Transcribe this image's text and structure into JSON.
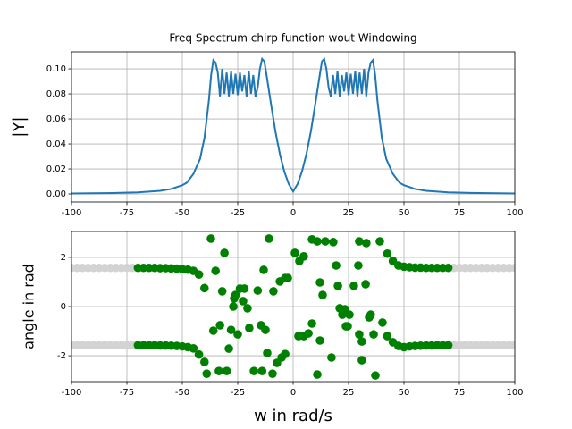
{
  "chart_data": [
    {
      "type": "line",
      "title": "Freq Spectrum chirp function wout Windowing",
      "ylabel": "|Y|",
      "x": [
        -100,
        -80,
        -70,
        -60,
        -55,
        -50,
        -48,
        -45,
        -42,
        -40,
        -38,
        -37,
        -36,
        -35,
        -34,
        -33,
        -32,
        -31,
        -30,
        -29,
        -28,
        -27,
        -26,
        -25,
        -24,
        -23,
        -22,
        -21,
        -20,
        -19,
        -18,
        -17,
        -16,
        -15,
        -14,
        -13,
        -12,
        -10,
        -8,
        -6,
        -4,
        -2,
        0,
        2,
        4,
        6,
        8,
        10,
        12,
        13,
        14,
        15,
        16,
        17,
        18,
        19,
        20,
        21,
        22,
        23,
        24,
        25,
        26,
        27,
        28,
        29,
        30,
        31,
        32,
        33,
        34,
        35,
        36,
        37,
        38,
        40,
        42,
        45,
        48,
        50,
        55,
        60,
        70,
        80,
        100
      ],
      "series": [
        {
          "color": "#1f77b4",
          "values": [
            0.0004,
            0.0008,
            0.0013,
            0.0025,
            0.004,
            0.007,
            0.009,
            0.016,
            0.028,
            0.045,
            0.075,
            0.095,
            0.107,
            0.105,
            0.097,
            0.078,
            0.1,
            0.08,
            0.097,
            0.078,
            0.098,
            0.08,
            0.096,
            0.079,
            0.097,
            0.082,
            0.095,
            0.078,
            0.098,
            0.08,
            0.095,
            0.078,
            0.085,
            0.1,
            0.108,
            0.106,
            0.095,
            0.072,
            0.05,
            0.032,
            0.018,
            0.008,
            0.002,
            0.008,
            0.018,
            0.032,
            0.05,
            0.072,
            0.095,
            0.106,
            0.108,
            0.1,
            0.085,
            0.078,
            0.095,
            0.08,
            0.098,
            0.078,
            0.095,
            0.082,
            0.097,
            0.079,
            0.096,
            0.08,
            0.098,
            0.078,
            0.097,
            0.08,
            0.1,
            0.078,
            0.097,
            0.105,
            0.107,
            0.095,
            0.075,
            0.045,
            0.028,
            0.016,
            0.009,
            0.007,
            0.004,
            0.0025,
            0.0013,
            0.0008,
            0.0004
          ]
        }
      ],
      "xlim": [
        -100,
        100
      ],
      "ylim": [
        -0.0064,
        0.1136
      ],
      "xticks": [
        -100,
        -75,
        -50,
        -25,
        0,
        25,
        50,
        75,
        100
      ],
      "yticks": [
        {
          "value": 0,
          "label": "0.00"
        },
        {
          "value": 0.02,
          "label": "0.02"
        },
        {
          "value": 0.04,
          "label": "0.04"
        },
        {
          "value": 0.06,
          "label": "0.06"
        },
        {
          "value": 0.08,
          "label": "0.08"
        },
        {
          "value": 0.1,
          "label": "0.10"
        }
      ],
      "grid": true
    },
    {
      "type": "scatter",
      "xlabel": "w in rad/s",
      "ylabel": "angle in rad",
      "series": [
        {
          "color": "lightgray",
          "x": [
            -100,
            -97.5,
            -95,
            -92.5,
            -90,
            -87.5,
            -85,
            -82.5,
            -80,
            -77.5,
            -75,
            -72.5,
            -100,
            -97.5,
            -95,
            -92.5,
            -90,
            -87.5,
            -85,
            -82.5,
            -80,
            -77.5,
            -75,
            -72.5,
            72.5,
            75,
            77.5,
            80,
            82.5,
            85,
            87.5,
            90,
            92.5,
            95,
            97.5,
            100,
            72.5,
            75,
            77.5,
            80,
            82.5,
            85,
            87.5,
            90,
            92.5,
            95,
            97.5,
            100
          ],
          "values": [
            1.57,
            1.57,
            1.57,
            1.57,
            1.57,
            1.57,
            1.57,
            1.57,
            1.57,
            1.57,
            1.57,
            1.57,
            -1.57,
            -1.57,
            -1.57,
            -1.57,
            -1.57,
            -1.57,
            -1.57,
            -1.57,
            -1.57,
            -1.57,
            -1.57,
            -1.57,
            1.57,
            1.57,
            1.57,
            1.57,
            1.57,
            1.57,
            1.57,
            1.57,
            1.57,
            1.57,
            1.57,
            1.57,
            -1.57,
            -1.57,
            -1.57,
            -1.57,
            -1.57,
            -1.57,
            -1.57,
            -1.57,
            -1.57,
            -1.57,
            -1.57,
            -1.57
          ]
        },
        {
          "color": "green",
          "x": [
            -70,
            -67.5,
            -65,
            -62.5,
            -60,
            -57.5,
            -55,
            -52.5,
            -50,
            -47.5,
            -45,
            -42.5,
            -40,
            -70,
            -67.5,
            -65,
            -62.5,
            -60,
            -57.5,
            -55,
            -52.5,
            -50,
            -47.5,
            -45,
            -42.5,
            -40,
            42.5,
            45,
            47.5,
            50,
            52.5,
            55,
            57.5,
            60,
            62.5,
            65,
            67.5,
            70,
            42.5,
            45,
            47.5,
            50,
            52.5,
            55,
            57.5,
            60,
            62.5,
            65,
            67.5,
            70,
            -37.1,
            -31,
            -35,
            -36,
            -33,
            -39,
            -33.5,
            -30,
            -29,
            -32,
            -26,
            -24,
            -22,
            -26.6,
            -22.6,
            -27,
            -20.6,
            -19.8,
            -28,
            -25,
            -14.5,
            -12.5,
            -11.7,
            -17.7,
            -14,
            -10.9,
            -13.3,
            -16,
            -8.9,
            -6,
            -3.6,
            -2.4,
            -5.2,
            -3.6,
            -7.3,
            -9.3,
            0.8,
            2.8,
            4.8,
            2.4,
            4.8,
            6.9,
            8.5,
            8.5,
            10.9,
            12.1,
            13.3,
            12.1,
            10.9,
            14.5,
            18.1,
            19.4,
            17.3,
            20.2,
            21,
            22.2,
            23.4,
            23.8,
            24.6,
            25.4,
            27.4,
            29.4,
            29.8,
            29.8,
            31,
            32.7,
            33,
            31,
            34.3,
            36.3,
            37.1,
            39.1,
            40.3,
            35
          ],
          "values": [
            1.57,
            1.57,
            1.57,
            1.57,
            1.56,
            1.56,
            1.55,
            1.54,
            1.52,
            1.5,
            1.45,
            1.3,
            0.75,
            -1.57,
            -1.57,
            -1.57,
            -1.57,
            -1.58,
            -1.58,
            -1.59,
            -1.6,
            -1.62,
            -1.65,
            -1.7,
            -1.95,
            -2.25,
            2.15,
            1.85,
            1.67,
            1.62,
            1.6,
            1.58,
            1.58,
            1.57,
            1.57,
            1.57,
            1.57,
            1.57,
            -1.2,
            -1.45,
            -1.6,
            -1.65,
            -1.62,
            -1.6,
            -1.59,
            -1.58,
            -1.58,
            -1.57,
            -1.57,
            -1.57,
            2.76,
            2.18,
            1.45,
            -0.98,
            -0.76,
            -2.73,
            -2.62,
            -2.62,
            -1.71,
            0.62,
            0.47,
            0.73,
            0.73,
            0.33,
            0.22,
            0,
            -0.07,
            -0.87,
            -0.95,
            -1.13,
            -0.76,
            -0.95,
            -1.89,
            -2.62,
            -2.62,
            2.76,
            1.49,
            0.65,
            0.62,
            1.02,
            1.16,
            1.16,
            -2.07,
            -1.93,
            -2.29,
            -2.73,
            2.18,
            1.85,
            2.04,
            -1.2,
            -1.2,
            -1.09,
            -0.69,
            2.73,
            2.65,
            0.98,
            0.47,
            -1.38,
            -2.76,
            2.65,
            2.62,
            1.67,
            -2.07,
            0.84,
            -0.07,
            -0.33,
            -0.11,
            -0.8,
            -0.8,
            -0.33,
            0.84,
            1.67,
            2.65,
            -1.13,
            -2.18,
            0.91,
            2.58,
            -1.42,
            -0.44,
            -1.13,
            -2.8,
            2.65,
            -0.65,
            -0.33
          ]
        }
      ],
      "xlim": [
        -100,
        100
      ],
      "ylim": [
        -3.05,
        3.05
      ],
      "xticks": [
        -100,
        -75,
        -50,
        -25,
        0,
        25,
        50,
        75,
        100
      ],
      "yticks": [
        -2,
        0,
        2
      ],
      "grid": true
    }
  ]
}
